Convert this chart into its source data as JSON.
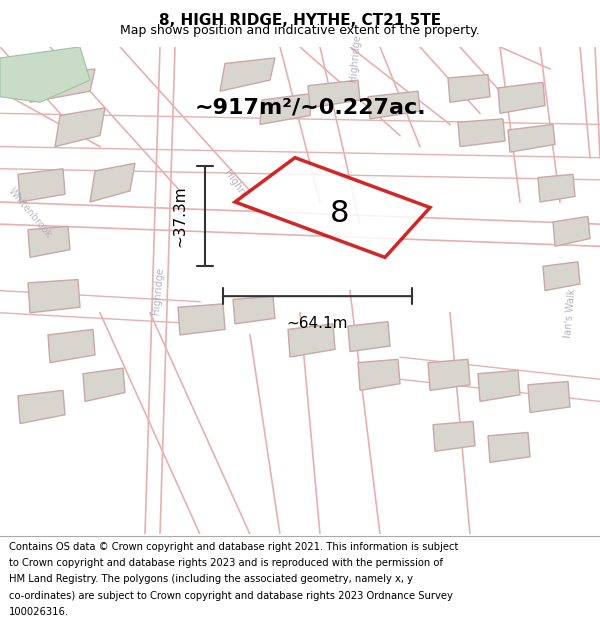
{
  "title": "8, HIGH RIDGE, HYTHE, CT21 5TE",
  "subtitle": "Map shows position and indicative extent of the property.",
  "area_text": "~917m²/~0.227ac.",
  "width_text": "~64.1m",
  "height_text": "~37.3m",
  "property_number": "8",
  "footer_lines": [
    "Contains OS data © Crown copyright and database right 2021. This information is subject",
    "to Crown copyright and database rights 2023 and is reproduced with the permission of",
    "HM Land Registry. The polygons (including the associated geometry, namely x, y",
    "co-ordinates) are subject to Crown copyright and database rights 2023 Ordnance Survey",
    "100026316."
  ],
  "map_bg_color": "#f0ede8",
  "title_color": "#000000",
  "footer_color": "#000000",
  "property_outline_color": "#cc0000",
  "building_fill_color": "#d8d5cf",
  "building_edge_color": "#c8a8a8",
  "road_color": "#e8b0b0",
  "green_area_color": "#c8dcc8",
  "dim_line_color": "#333333",
  "street_label_color": "#a0a0b0"
}
